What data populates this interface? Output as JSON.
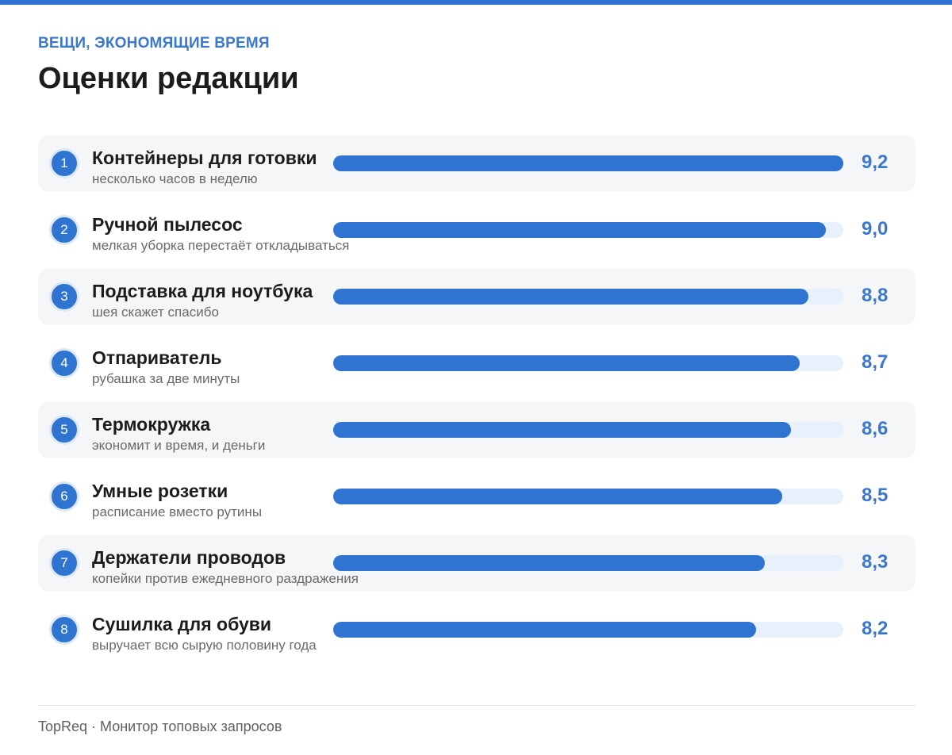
{
  "header": {
    "eyebrow": "ВЕЩИ, ЭКОНОМЯЩИЕ ВРЕМЯ",
    "title": "Оценки редакции"
  },
  "colors": {
    "accent": "#2f74d0",
    "value_text": "#3a78cf",
    "track": "#e7f0fb",
    "row_shade": "#f5f6f8"
  },
  "chart_data": {
    "type": "bar",
    "orientation": "horizontal",
    "title": "Оценки редакции",
    "xlim": [
      0,
      10
    ],
    "items": [
      {
        "rank": "1",
        "name": "Контейнеры для готовки",
        "subtitle": "несколько часов в неделю",
        "value": 9.2,
        "value_label": "9,2"
      },
      {
        "rank": "2",
        "name": "Ручной пылесос",
        "subtitle": "мелкая уборка перестаёт откладываться",
        "value": 9.0,
        "value_label": "9,0"
      },
      {
        "rank": "3",
        "name": "Подставка для ноутбука",
        "subtitle": "шея скажет спасибо",
        "value": 8.8,
        "value_label": "8,8"
      },
      {
        "rank": "4",
        "name": "Отпариватель",
        "subtitle": "рубашка за две минуты",
        "value": 8.7,
        "value_label": "8,7"
      },
      {
        "rank": "5",
        "name": "Термокружка",
        "subtitle": "экономит и время, и деньги",
        "value": 8.6,
        "value_label": "8,6"
      },
      {
        "rank": "6",
        "name": "Умные розетки",
        "subtitle": "расписание вместо рутины",
        "value": 8.5,
        "value_label": "8,5"
      },
      {
        "rank": "7",
        "name": "Держатели проводов",
        "subtitle": "копейки против ежедневного раздражения",
        "value": 8.3,
        "value_label": "8,3"
      },
      {
        "rank": "8",
        "name": "Сушилка для обуви",
        "subtitle": "выручает всю сырую половину года",
        "value": 8.2,
        "value_label": "8,2"
      }
    ]
  },
  "footer": {
    "text": "TopReq · Монитор топовых запросов"
  }
}
